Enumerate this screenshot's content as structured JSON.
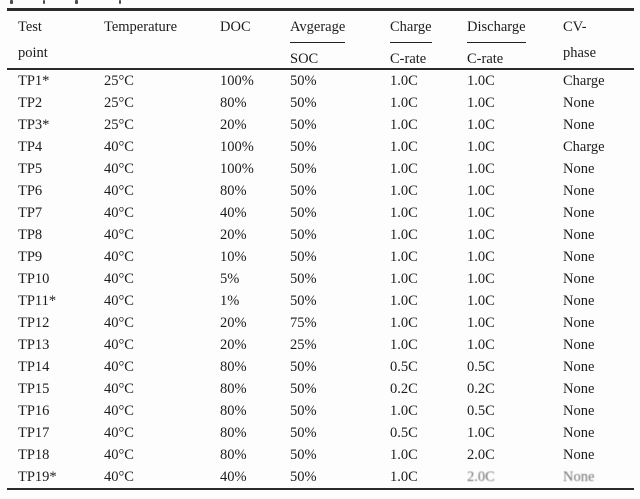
{
  "colors": {
    "text": "#1c1c1c",
    "rule": "#2b2b2b",
    "background": "#fdfdfd"
  },
  "table": {
    "headers": {
      "test_point_line1": "Test",
      "test_point_line2": "point",
      "temperature": "Temperature",
      "doc": "DOC",
      "average_top": "Avgerage",
      "average_bottom": "SOC",
      "charge_top": "Charge",
      "charge_bottom": "C-rate",
      "discharge_top": "Discharge",
      "discharge_bottom": "C-rate",
      "cv_line1": "CV-",
      "cv_line2": "phase"
    },
    "rows": [
      [
        "TP1*",
        "25°C",
        "100%",
        "50%",
        "1.0C",
        "1.0C",
        "Charge"
      ],
      [
        "TP2",
        "25°C",
        "80%",
        "50%",
        "1.0C",
        "1.0C",
        "None"
      ],
      [
        "TP3*",
        "25°C",
        "20%",
        "50%",
        "1.0C",
        "1.0C",
        "None"
      ],
      [
        "TP4",
        "40°C",
        "100%",
        "50%",
        "1.0C",
        "1.0C",
        "Charge"
      ],
      [
        "TP5",
        "40°C",
        "100%",
        "50%",
        "1.0C",
        "1.0C",
        "None"
      ],
      [
        "TP6",
        "40°C",
        "80%",
        "50%",
        "1.0C",
        "1.0C",
        "None"
      ],
      [
        "TP7",
        "40°C",
        "40%",
        "50%",
        "1.0C",
        "1.0C",
        "None"
      ],
      [
        "TP8",
        "40°C",
        "20%",
        "50%",
        "1.0C",
        "1.0C",
        "None"
      ],
      [
        "TP9",
        "40°C",
        "10%",
        "50%",
        "1.0C",
        "1.0C",
        "None"
      ],
      [
        "TP10",
        "40°C",
        "5%",
        "50%",
        "1.0C",
        "1.0C",
        "None"
      ],
      [
        "TP11*",
        "40°C",
        "1%",
        "50%",
        "1.0C",
        "1.0C",
        "None"
      ],
      [
        "TP12",
        "40°C",
        "20%",
        "75%",
        "1.0C",
        "1.0C",
        "None"
      ],
      [
        "TP13",
        "40°C",
        "20%",
        "25%",
        "1.0C",
        "1.0C",
        "None"
      ],
      [
        "TP14",
        "40°C",
        "80%",
        "50%",
        "0.5C",
        "0.5C",
        "None"
      ],
      [
        "TP15",
        "40°C",
        "80%",
        "50%",
        "0.2C",
        "0.2C",
        "None"
      ],
      [
        "TP16",
        "40°C",
        "80%",
        "50%",
        "1.0C",
        "0.5C",
        "None"
      ],
      [
        "TP17",
        "40°C",
        "80%",
        "50%",
        "0.5C",
        "1.0C",
        "None"
      ],
      [
        "TP18",
        "40°C",
        "80%",
        "50%",
        "1.0C",
        "2.0C",
        "None"
      ],
      [
        "TP19*",
        "40°C",
        "40%",
        "50%",
        "1.0C",
        "2.0C",
        "None"
      ]
    ],
    "faded_last_row_columns": [
      5,
      6
    ]
  }
}
